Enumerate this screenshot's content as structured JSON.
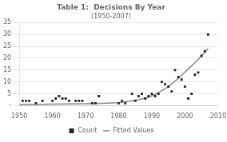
{
  "chart_data": {
    "type": "scatter",
    "title": "Table 1:  Decisions By Year",
    "subtitle": "(1950-2007)",
    "xlim": [
      1950,
      2010
    ],
    "ylim": [
      0,
      35
    ],
    "xticks": [
      1950,
      1960,
      1970,
      1980,
      1990,
      2000,
      2010
    ],
    "yticks": [
      {
        "value": 0,
        "label": "-"
      },
      5,
      10,
      15,
      20,
      25,
      30,
      35
    ],
    "grid": "y",
    "legend": "bottom",
    "series": [
      {
        "name": "Count",
        "type": "scatter",
        "color": "#222222",
        "marker": "square",
        "x": [
          1951,
          1952,
          1953,
          1955,
          1957,
          1960,
          1961,
          1962,
          1963,
          1964,
          1965,
          1967,
          1968,
          1969,
          1972,
          1973,
          1974,
          1980,
          1981,
          1982,
          1984,
          1985,
          1986,
          1987,
          1988,
          1989,
          1990,
          1991,
          1992,
          1993,
          1994,
          1995,
          1996,
          1997,
          1998,
          1999,
          2000,
          2001,
          2002,
          2003,
          2004,
          2005,
          2006,
          2007
        ],
        "values": [
          2,
          2,
          2,
          1,
          2,
          2,
          3,
          4,
          3,
          3,
          2,
          2,
          2,
          2,
          1,
          1,
          4,
          1,
          2,
          1,
          5,
          2,
          4,
          5,
          3,
          4,
          5,
          4,
          5,
          10,
          9,
          8,
          6,
          15,
          12,
          11,
          8,
          3,
          5,
          13,
          14,
          21,
          23,
          30
        ]
      },
      {
        "name": "Fitted Values",
        "type": "line",
        "color": "#888888",
        "line_style": "solid",
        "x": [
          1950,
          1955,
          1960,
          1965,
          1970,
          1975,
          1980,
          1983,
          1986,
          1989,
          1992,
          1995,
          1998,
          2001,
          2004,
          2006,
          2007
        ],
        "values": [
          0.5,
          0.5,
          0.6,
          0.7,
          0.8,
          1.0,
          1.2,
          1.8,
          2.5,
          3.5,
          5.5,
          8.0,
          11.5,
          15.5,
          19.5,
          22.5,
          24.0
        ]
      }
    ]
  }
}
